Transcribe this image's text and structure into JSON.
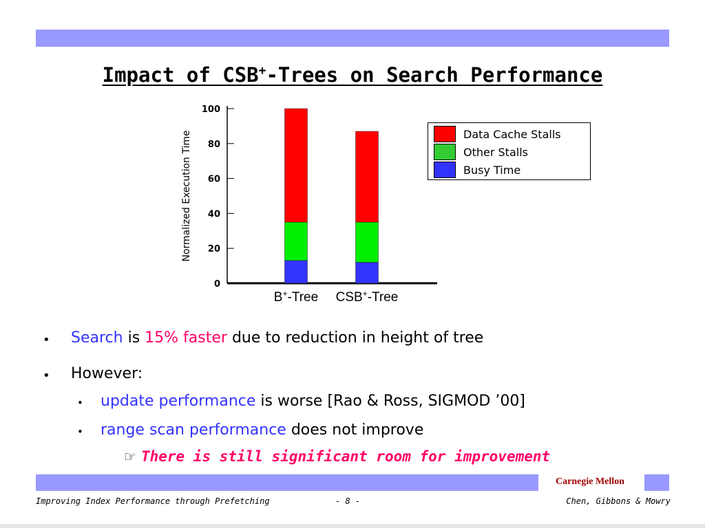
{
  "slide": {
    "title_main": "Impact of CSB",
    "title_sup": "+",
    "title_rest": "-Trees on Search Performance"
  },
  "chart_data": {
    "type": "bar",
    "stacked": true,
    "ylabel": "Normalized Execution Time",
    "ylim": [
      0,
      100
    ],
    "yticks": [
      "0",
      "20",
      "40",
      "60",
      "80",
      "100"
    ],
    "categories": [
      "B+-Tree",
      "CSB+-Tree"
    ],
    "category_labels": [
      {
        "base": "B",
        "sup": "+",
        "rest": "-Tree"
      },
      {
        "base": "CSB",
        "sup": "+",
        "rest": "-Tree"
      }
    ],
    "series": [
      {
        "name": "Busy Time",
        "color": "#3333ff",
        "values": [
          13,
          12
        ]
      },
      {
        "name": "Other Stalls",
        "color": "#00ee00",
        "values": [
          22,
          23
        ]
      },
      {
        "name": "Data Cache Stalls",
        "color": "#ff0000",
        "values": [
          65,
          52
        ]
      }
    ],
    "legend": {
      "position": "right",
      "entries": [
        {
          "label": "Data Cache Stalls",
          "color": "#ff0000"
        },
        {
          "label": "Other Stalls",
          "color": "#33cc33"
        },
        {
          "label": "Busy Time",
          "color": "#3333ff"
        }
      ]
    }
  },
  "bullets": {
    "b1": {
      "search": "Search",
      "is": " is ",
      "faster": "15% faster",
      "rest": " due to reduction in height of tree"
    },
    "b2": {
      "text": "However:"
    },
    "s1": {
      "update": "update performance",
      "rest": " is worse [Rao & Ross, SIGMOD ’00]"
    },
    "s2": {
      "range": "range scan performance",
      "rest": " does not improve"
    },
    "callout": {
      "icon": "☞",
      "text": "There is still significant room for improvement"
    }
  },
  "footer": {
    "org": "Carnegie Mellon",
    "left": "Improving Index Performance through Prefetching",
    "page": "- 8 -",
    "authors": "Chen, Gibbons & Mowry"
  }
}
